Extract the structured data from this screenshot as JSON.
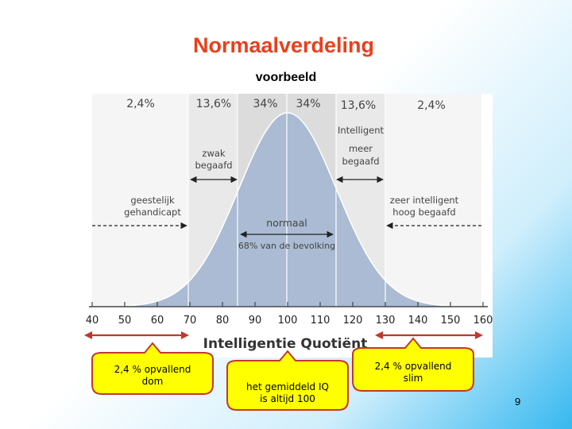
{
  "slide": {
    "title": "Normaalverdeling",
    "subtitle": "voorbeeld",
    "page_number": "9"
  },
  "figure": {
    "percentages": [
      "2,4%",
      "13,6%",
      "34%",
      "34%",
      "13,6%",
      "2,4%"
    ],
    "labels": {
      "zwak_line1": "zwak",
      "zwak_line2": "begaafd",
      "intelligent_line1": "Intelligent",
      "intelligent_line2": "meer",
      "intelligent_line3": "begaafd",
      "geestelijk_line1": "geestelijk",
      "geestelijk_line2": "gehandicapt",
      "zeer_line1": "zeer intelligent",
      "zeer_line2": "hoog begaafd",
      "normaal": "normaal",
      "bevolking": "68% van de bevolking"
    },
    "axis_ticks": [
      "40",
      "50",
      "60",
      "70",
      "80",
      "90",
      "100",
      "110",
      "120",
      "130",
      "140",
      "150",
      "160"
    ],
    "axis_title": "Intelligentie Quotiënt"
  },
  "callouts": {
    "left_line1": "2,4 % opvallend",
    "left_line2": "dom",
    "middle_line1": "het gemiddeld IQ",
    "middle_line2": "is altijd 100",
    "right_line1": "2,4 % opvallend",
    "right_line2": "slim"
  },
  "colors": {
    "title": "#e8401c",
    "curve_fill": "#aabbd3",
    "callout_fill": "#ffff00",
    "callout_border": "#c0392b",
    "arrow_red": "#c0392b"
  }
}
